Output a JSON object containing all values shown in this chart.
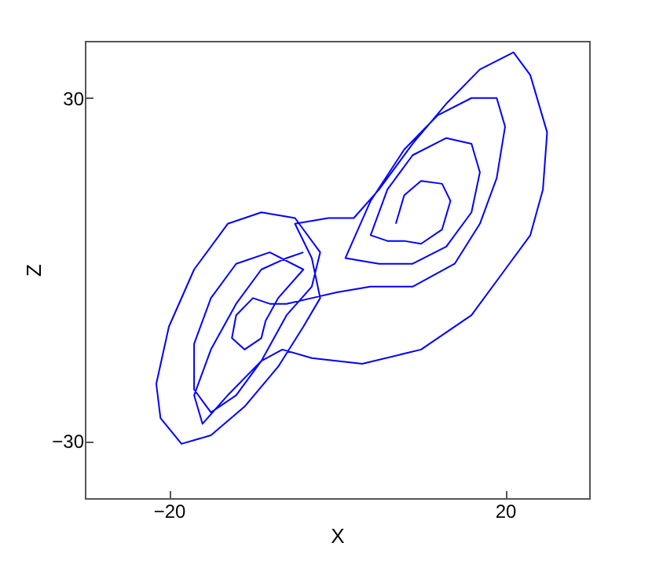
{
  "chart_data": {
    "type": "line",
    "xlabel": "X",
    "ylabel": "Z",
    "xlim": [
      -30,
      30
    ],
    "ylim": [
      -40,
      40
    ],
    "xticks": [
      -20,
      20
    ],
    "yticks": [
      -30,
      30
    ],
    "x": [
      7,
      8,
      10,
      12.5,
      13.5,
      12.5,
      10,
      8,
      6,
      4,
      6,
      9,
      13,
      16,
      17,
      16,
      13,
      9,
      5,
      1,
      4,
      8,
      12,
      16,
      19,
      20,
      19,
      17,
      14,
      9,
      4,
      0,
      -3,
      -6,
      -8,
      -10,
      -12,
      -12.5,
      -11,
      -9,
      -8.5,
      -7,
      -4,
      -8,
      -12,
      -15,
      -17,
      -17,
      -15,
      -12,
      -9,
      -6,
      -3,
      -2,
      -5,
      -9,
      -13,
      -17,
      -20,
      -21.5,
      -21,
      -18.5,
      -15,
      -11,
      -7,
      -4,
      -2,
      -3,
      -5,
      -1,
      2,
      5,
      9,
      13,
      17,
      21,
      23,
      25,
      24.5,
      23,
      20,
      16,
      10,
      3,
      -3,
      -6.5,
      -9,
      -13,
      -16,
      -17,
      -15,
      -12,
      -9,
      -6,
      -4
    ],
    "series": [
      {
        "color": "#0000ff",
        "values": [
          8,
          13,
          15.5,
          15,
          12,
          7,
          4.5,
          5,
          5,
          6,
          14,
          20,
          23,
          22,
          17,
          10,
          4,
          1,
          1,
          2,
          12,
          21,
          27,
          30,
          30,
          25,
          16,
          8,
          1,
          -3,
          -3,
          -4,
          -5,
          -6,
          -6,
          -5,
          -8,
          -12,
          -14,
          -12,
          -9,
          -5,
          0,
          3,
          1,
          -5,
          -13,
          -21,
          -25,
          -22,
          -16,
          -8,
          -3,
          3,
          9,
          10,
          8,
          0,
          -10,
          -20,
          -26,
          -30.5,
          -29,
          -24,
          -17,
          -10,
          -5,
          2,
          8,
          9,
          9,
          14,
          22,
          29,
          35,
          38,
          34,
          24,
          14,
          6,
          0,
          -8,
          -14,
          -16.5,
          -15.5,
          -14,
          -16,
          -22,
          -27,
          -22,
          -14,
          -6,
          0,
          2,
          3
        ]
      }
    ]
  }
}
